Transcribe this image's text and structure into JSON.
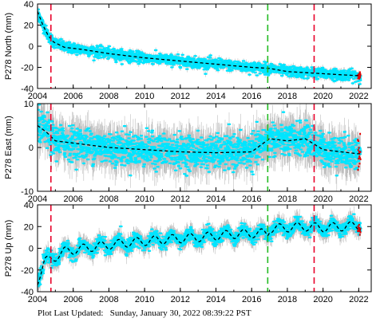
{
  "footer": {
    "label": "Plot Last Updated:",
    "timestamp": "Sunday, January 30, 2022 08:39:22 PST"
  },
  "colors": {
    "points": "#00e5ff",
    "errorbars": "#a8a8a8",
    "model": "#000000",
    "red_events": "#e8002a",
    "green_events": "#22bb22",
    "recent_points": "#e00000"
  },
  "chart_data": [
    {
      "type": "scatter",
      "station": "P278",
      "component": "North",
      "ylabel": "P278 North (mm)",
      "xlim": [
        2004,
        2022.7
      ],
      "ylim": [
        -40,
        40
      ],
      "xticks": [
        2004,
        2006,
        2008,
        2010,
        2012,
        2014,
        2016,
        2018,
        2020,
        2022
      ],
      "yticks": [
        -40,
        -20,
        0,
        20,
        40
      ],
      "grid": false,
      "legend": "none",
      "events_red": [
        2004.75,
        2019.5
      ],
      "events_green": [
        2016.9
      ],
      "model_x": [
        2004.0,
        2004.3,
        2004.6,
        2004.9,
        2005.5,
        2006.5,
        2008,
        2010,
        2012,
        2014,
        2016,
        2017,
        2018,
        2019,
        2020,
        2021,
        2022.1
      ],
      "model_y": [
        33,
        20,
        10,
        4,
        -1,
        -3,
        -7,
        -11,
        -14,
        -17,
        -20,
        -21,
        -24,
        -25,
        -26,
        -27,
        -28
      ],
      "noise": 2.5,
      "errorbar": 2.5
    },
    {
      "type": "scatter",
      "station": "P278",
      "component": "East",
      "ylabel": "P278 East (mm)",
      "xlim": [
        2004,
        2022.7
      ],
      "ylim": [
        -10,
        10
      ],
      "xticks": [
        2004,
        2006,
        2008,
        2010,
        2012,
        2014,
        2016,
        2018,
        2020,
        2022
      ],
      "yticks": [
        -10,
        0,
        10
      ],
      "grid": false,
      "legend": "none",
      "events_red": [
        2004.75,
        2019.5
      ],
      "events_green": [
        2016.9
      ],
      "model_x": [
        2004.0,
        2004.5,
        2005.0,
        2006.0,
        2008,
        2010,
        2012,
        2014,
        2016,
        2017,
        2018,
        2019,
        2020,
        2021,
        2022.1
      ],
      "model_y": [
        5,
        3.5,
        1.5,
        1,
        0,
        -0.5,
        -1,
        -1.2,
        -1,
        2,
        1.5,
        2,
        -0.5,
        -1,
        -1.5
      ],
      "noise": 1.8,
      "errorbar": 3.2
    },
    {
      "type": "scatter",
      "station": "P278",
      "component": "Up",
      "ylabel": "P278 Up (mm)",
      "xlim": [
        2004,
        2022.7
      ],
      "ylim": [
        -40,
        40
      ],
      "xticks": [
        2004,
        2006,
        2008,
        2010,
        2012,
        2014,
        2016,
        2018,
        2020,
        2022
      ],
      "yticks": [
        -40,
        -20,
        0,
        20,
        40
      ],
      "grid": false,
      "legend": "none",
      "events_red": [
        2004.75,
        2019.5
      ],
      "events_green": [
        2016.9
      ],
      "model_x": [
        2004.0,
        2004.4,
        2004.8,
        2005.5,
        2007,
        2009,
        2011,
        2013,
        2015,
        2016.9,
        2017,
        2019,
        2020,
        2022.1
      ],
      "model_y": [
        -30,
        -12,
        -10,
        -3,
        1,
        5,
        8,
        10,
        13,
        14,
        18,
        20,
        19,
        21
      ],
      "seasonal_amplitude": 4,
      "noise": 3,
      "errorbar": 6
    }
  ]
}
